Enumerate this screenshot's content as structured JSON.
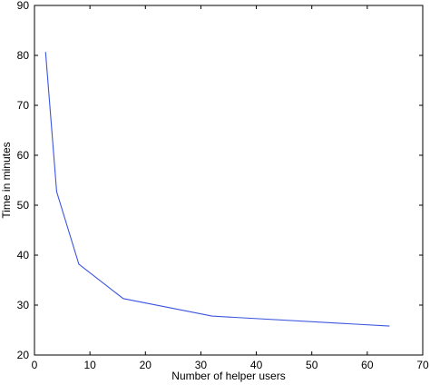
{
  "chart_data": {
    "type": "line",
    "title": "",
    "xlabel": "Number of helper users",
    "ylabel": "Time in minutes",
    "xlim": [
      0,
      70
    ],
    "ylim": [
      20,
      90
    ],
    "xticks": [
      0,
      10,
      20,
      30,
      40,
      50,
      60,
      70
    ],
    "yticks": [
      20,
      30,
      40,
      50,
      60,
      70,
      80,
      90
    ],
    "grid": false,
    "legend": "none",
    "series": [
      {
        "color": "#3d55e0",
        "x": [
          2,
          4,
          8,
          16,
          32,
          64
        ],
        "y": [
          80.7,
          52.7,
          38.2,
          31.3,
          27.8,
          25.8
        ]
      }
    ]
  }
}
